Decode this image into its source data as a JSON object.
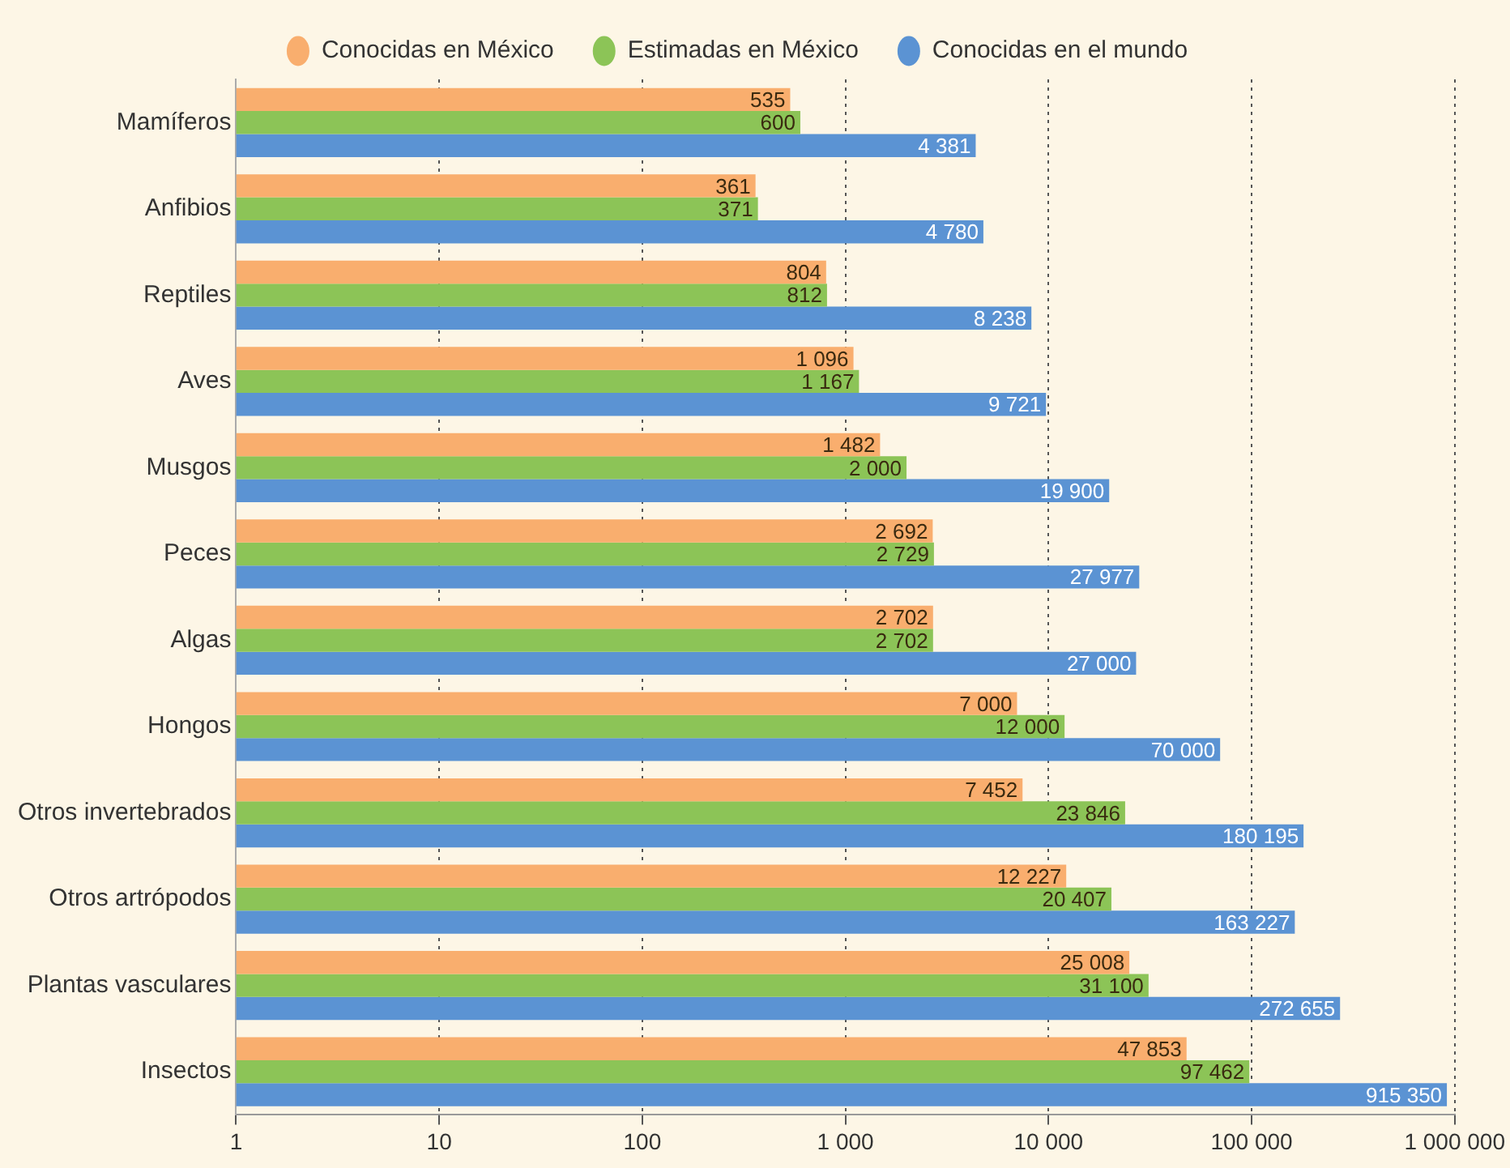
{
  "chart_data": {
    "type": "bar",
    "orientation": "horizontal",
    "log": "x",
    "categories": [
      "Mamíferos",
      "Anfibios",
      "Reptiles",
      "Aves",
      "Musgos",
      "Peces",
      "Algas",
      "Hongos",
      "Otros invertebrados",
      "Otros artrópodos",
      "Plantas vasculares",
      "Insectos"
    ],
    "series": [
      {
        "name": "Conocidas en México",
        "color": "#f9ae6e",
        "values": [
          535,
          361,
          804,
          1096,
          1482,
          2692,
          2702,
          7000,
          7452,
          12227,
          25008,
          47853
        ],
        "value_labels": [
          "535",
          "361",
          "804",
          "1 096",
          "1 482",
          "2 692",
          "2 702",
          "7 000",
          "7 452",
          "12 227",
          "25 008",
          "47 853"
        ]
      },
      {
        "name": "Estimadas en México",
        "color": "#8cc457",
        "values": [
          600,
          371,
          812,
          1167,
          2000,
          2729,
          2702,
          12000,
          23846,
          20407,
          31100,
          97462
        ],
        "value_labels": [
          "600",
          "371",
          "812",
          "1 167",
          "2 000",
          "2 729",
          "2 702",
          "12 000",
          "23 846",
          "20 407",
          "31 100",
          "97 462"
        ]
      },
      {
        "name": "Conocidas en el mundo",
        "color": "#5b93d3",
        "values": [
          4381,
          4780,
          8238,
          9721,
          19900,
          27977,
          27000,
          70000,
          180195,
          163227,
          272655,
          915350
        ],
        "value_labels": [
          "4 381",
          "4 780",
          "8 238",
          "9 721",
          "19 900",
          "27 977",
          "27 000",
          "70 000",
          "180 195",
          "163 227",
          "272 655",
          "915 350"
        ]
      }
    ],
    "xlim": [
      1,
      1000000
    ],
    "xticks": [
      1,
      10,
      100,
      {
        "value": 1000,
        "label": "1 000"
      },
      {
        "value": 10000,
        "label": "10 000"
      },
      {
        "value": 100000,
        "label": "100 000"
      },
      {
        "value": 1000000,
        "label": "1 000 000"
      }
    ],
    "grid": "x",
    "legend": "top",
    "marker": "circle"
  }
}
